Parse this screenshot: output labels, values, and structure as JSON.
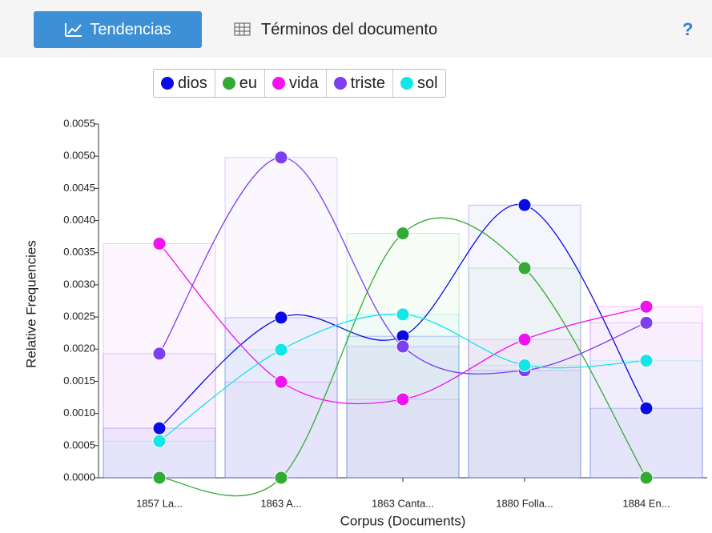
{
  "tabs": [
    "Tendencias",
    "Términos del documento"
  ],
  "help": "?",
  "chart_data": {
    "type": "line",
    "xlabel": "Corpus (Documents)",
    "ylabel": "Relative Frequencies",
    "categories": [
      "1857 La...",
      "1863 A...",
      "1863 Canta...",
      "1880 Folla...",
      "1884 En..."
    ],
    "series": [
      {
        "name": "dios",
        "color": "#0a0ae6",
        "values": [
          0.00077,
          0.00249,
          0.0022,
          0.00424,
          0.00108
        ]
      },
      {
        "name": "eu",
        "color": "#33aa33",
        "values": [
          0,
          0,
          0.0038,
          0.00326,
          0
        ]
      },
      {
        "name": "vida",
        "color": "#f012f0",
        "values": [
          0.00364,
          0.00149,
          0.00122,
          0.00215,
          0.00266
        ]
      },
      {
        "name": "triste",
        "color": "#7d3ff0",
        "values": [
          0.00193,
          0.00498,
          0.00204,
          0.00167,
          0.00241
        ]
      },
      {
        "name": "sol",
        "color": "#12e6e6",
        "values": [
          0.00057,
          0.00199,
          0.00254,
          0.00175,
          0.00182
        ]
      }
    ],
    "ylim": [
      0,
      0.0055
    ],
    "yticks": [
      {
        "value": 0,
        "label": "0.0000"
      },
      0.0005,
      {
        "value": 0.001,
        "label": "0.0010"
      },
      0.0015,
      {
        "value": 0.002,
        "label": "0.0020"
      },
      0.0025,
      {
        "value": 0.003,
        "label": "0.0030"
      },
      0.0035,
      {
        "value": 0.004,
        "label": "0.0040"
      },
      0.0045,
      {
        "value": 0.005,
        "label": "0.0050"
      },
      0.0055
    ]
  }
}
